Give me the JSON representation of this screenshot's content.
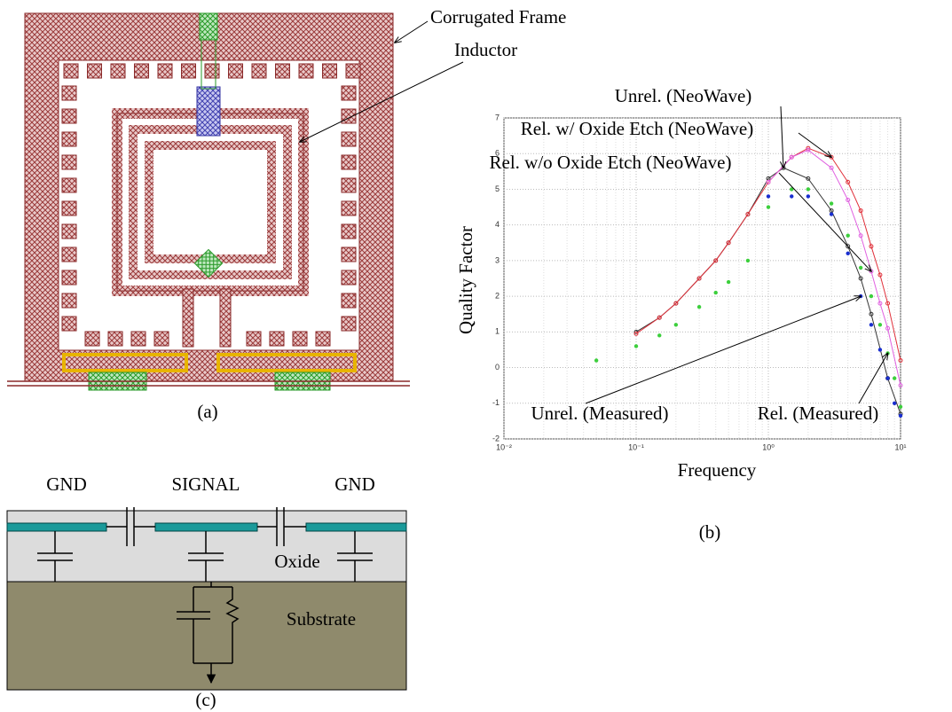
{
  "panels": {
    "a": {
      "label": "(a)",
      "annotation": [
        "Corrugated Frame",
        "Inductor"
      ]
    },
    "c": {
      "label": "(c)",
      "gnd_left": "GND",
      "signal": "SIGNAL",
      "gnd_right": "GND",
      "oxide": "Oxide",
      "substrate": "Substrate"
    }
  },
  "chart_data": {
    "type": "line",
    "panel_label": "(b)",
    "x_label": "Frequency",
    "y_label": "Quality Factor",
    "xscale": "log",
    "grid": true,
    "xlim": [
      0.01,
      10
    ],
    "xticks": [
      {
        "value": 0.01,
        "label": "10⁻²"
      },
      {
        "value": 0.1,
        "label": "10⁻¹"
      },
      {
        "value": 1,
        "label": "10⁰"
      },
      {
        "value": 10,
        "label": "10¹"
      }
    ],
    "ylim": [
      -2,
      7
    ],
    "yticks": [
      -2,
      -1,
      0,
      1,
      2,
      3,
      4,
      5,
      6,
      7
    ],
    "series": [
      {
        "name": "Unrel. (NeoWave)",
        "color": "#333333",
        "style": "line",
        "x": [
          0.1,
          0.15,
          0.2,
          0.3,
          0.4,
          0.5,
          0.7,
          1,
          1.3,
          2,
          3,
          4,
          5,
          6,
          8,
          10
        ],
        "values": [
          1.0,
          1.4,
          1.8,
          2.5,
          3.0,
          3.5,
          4.3,
          5.3,
          5.6,
          5.3,
          4.4,
          3.4,
          2.5,
          1.5,
          -0.3,
          -1.3
        ]
      },
      {
        "name": "Rel. w/ Oxide Etch (NeoWave)",
        "color": "#e0303a",
        "style": "line",
        "x": [
          0.1,
          0.15,
          0.2,
          0.3,
          0.4,
          0.5,
          0.7,
          1,
          1.5,
          2,
          3,
          4,
          5,
          6,
          7,
          8,
          10
        ],
        "values": [
          0.95,
          1.4,
          1.8,
          2.5,
          3.0,
          3.5,
          4.3,
          5.2,
          5.9,
          6.15,
          5.9,
          5.2,
          4.4,
          3.4,
          2.6,
          1.8,
          0.2
        ]
      },
      {
        "name": "Rel. w/o Oxide Etch (NeoWave)",
        "color": "#e060e0",
        "style": "line",
        "x": [
          1,
          1.5,
          2,
          3,
          4,
          5,
          6,
          7,
          8,
          10
        ],
        "values": [
          5.2,
          5.9,
          6.1,
          5.6,
          4.7,
          3.7,
          2.7,
          1.8,
          1.1,
          -0.5
        ]
      },
      {
        "name": "Unrel. (Measured)",
        "color": "#1a2fd0",
        "style": "points",
        "x": [
          1,
          1.5,
          2,
          3,
          4,
          5,
          6,
          7,
          8,
          9,
          10
        ],
        "values": [
          4.8,
          4.8,
          4.8,
          4.3,
          3.2,
          2.0,
          1.2,
          0.5,
          -0.3,
          -1.0,
          -1.35
        ]
      },
      {
        "name": "Rel. (Measured)",
        "color": "#3ccf3c",
        "style": "points",
        "x": [
          0.05,
          0.1,
          0.15,
          0.2,
          0.3,
          0.4,
          0.5,
          0.7,
          1,
          1.5,
          2,
          3,
          4,
          5,
          6,
          7,
          8,
          9,
          10
        ],
        "values": [
          0.2,
          0.6,
          0.9,
          1.2,
          1.7,
          2.1,
          2.4,
          3.0,
          4.5,
          5.0,
          5.0,
          4.6,
          3.7,
          2.8,
          2.0,
          1.2,
          0.4,
          -0.3,
          -1.1
        ]
      }
    ]
  }
}
